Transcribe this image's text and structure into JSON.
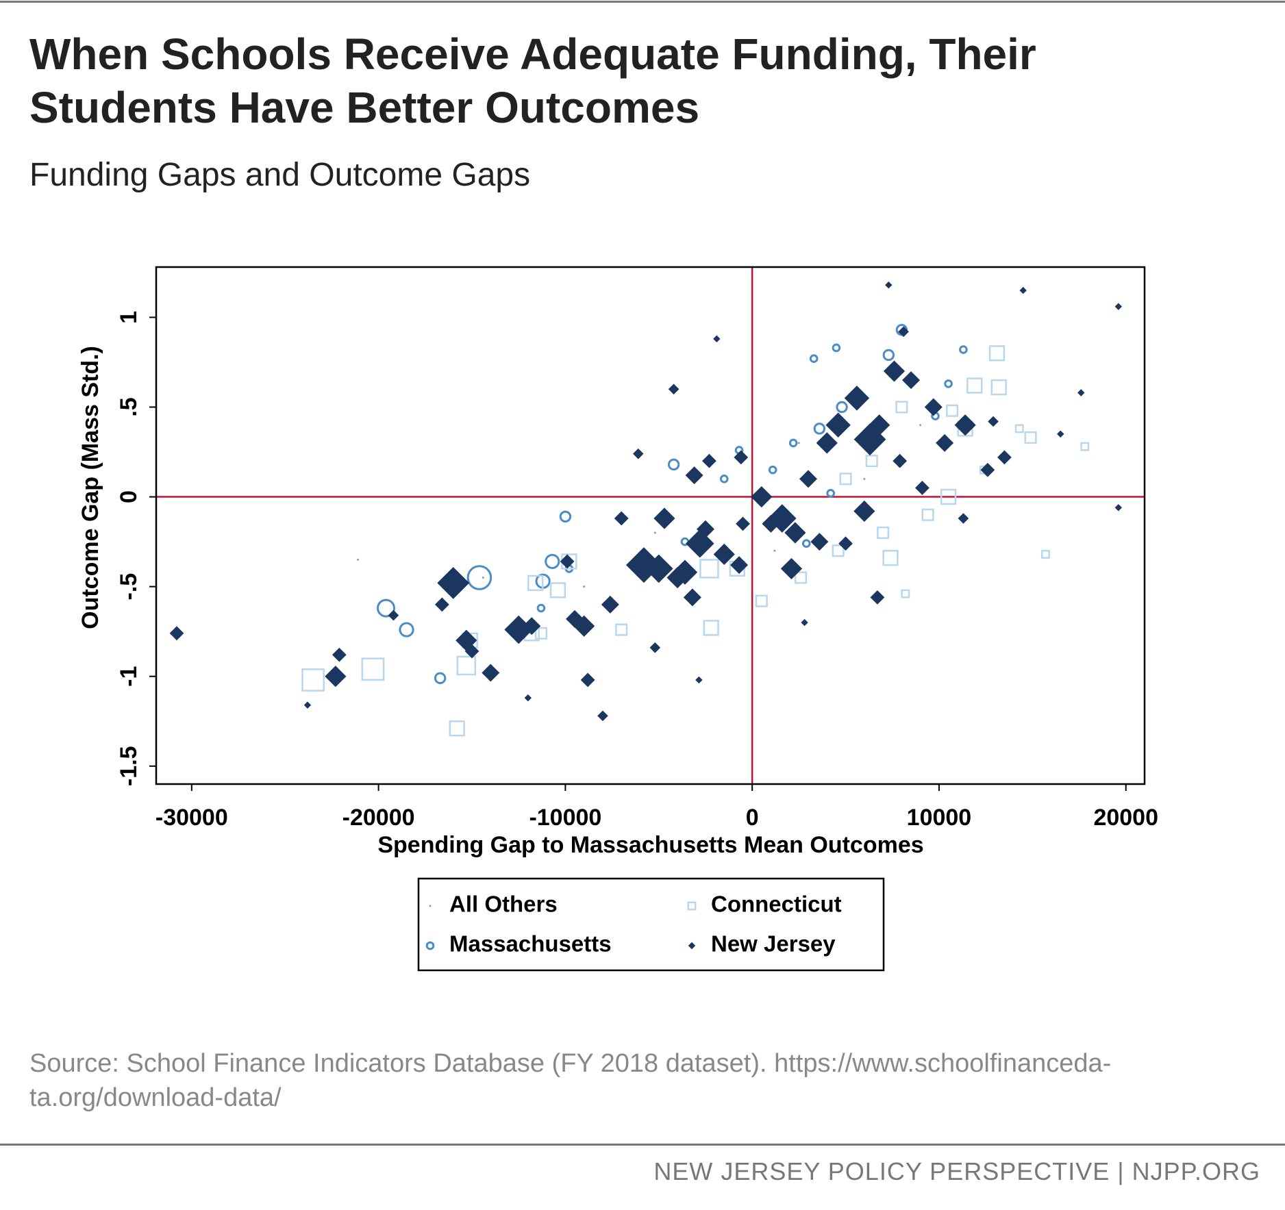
{
  "chart_data": {
    "type": "scatter",
    "title": "When Schools Receive Adequate Funding, Their Students Have Better Outcomes",
    "subtitle": "Funding Gaps and Outcome Gaps",
    "xlabel": "Spending Gap to Massachusetts Mean Outcomes",
    "ylabel": "Outcome Gap (Mass Std.)",
    "source": "Source: School Finance Indicators Database (FY 2018 dataset). https://www.schoolfinanceda-ta.org/download-data/",
    "footer": "NEW JERSEY POLICY PERSPECTIVE | NJPP.ORG",
    "xlim": [
      -31900,
      21000
    ],
    "ylim": [
      -1.6,
      1.28
    ],
    "xticks": [
      -30000,
      -20000,
      -10000,
      0,
      10000,
      20000
    ],
    "yticks": [
      {
        "value": -1.5,
        "label": "-1.5"
      },
      -1,
      {
        "value": -0.5,
        "label": "-.5"
      },
      0,
      {
        "value": 0.5,
        "label": ".5"
      },
      1
    ],
    "reference_lines": {
      "x": [
        0
      ],
      "y": [
        0
      ],
      "color": "#c8102e"
    },
    "series": [
      {
        "name": "All Others",
        "color": "#9a9a9a",
        "marker": "dot",
        "x": [
          -21100,
          -14400,
          2500,
          6000,
          -5200,
          1200,
          9000,
          -9000
        ],
        "values": [
          -0.35,
          -0.45,
          0.3,
          0.1,
          -0.2,
          -0.3,
          0.4,
          -0.5
        ],
        "sizes": [
          1,
          1,
          1,
          1,
          1,
          1,
          1,
          1
        ]
      },
      {
        "name": "Massachusetts",
        "color": "#4a8bc8",
        "marker": "circle",
        "x": [
          -14600,
          -19600,
          -18500,
          -16700,
          -11200,
          -10700,
          -10000,
          -11300,
          -4200,
          -700,
          3300,
          4500,
          8000,
          7300,
          4800,
          2200,
          1100,
          6000,
          9800,
          10500,
          11300,
          3600,
          4200,
          2900,
          -1500,
          -3600,
          -9800
        ],
        "values": [
          -0.45,
          -0.62,
          -0.74,
          -1.01,
          -0.47,
          -0.36,
          -0.11,
          -0.62,
          0.18,
          0.26,
          0.77,
          0.83,
          0.93,
          0.79,
          0.5,
          0.3,
          0.15,
          0.3,
          0.45,
          0.63,
          0.82,
          0.38,
          0.02,
          -0.26,
          0.1,
          -0.25,
          -0.4
        ],
        "sizes": [
          7,
          5,
          4,
          3,
          4,
          4,
          3,
          2,
          3,
          2,
          2,
          2,
          3,
          3,
          3,
          2,
          2,
          2,
          2,
          2,
          2,
          3,
          2,
          2,
          2,
          2,
          2
        ]
      },
      {
        "name": "Connecticut",
        "color": "#b7d7ef",
        "marker": "square",
        "x": [
          -23500,
          -20300,
          -15800,
          -15300,
          -15100,
          -11800,
          -11300,
          -11600,
          -10400,
          -9800,
          -7000,
          -2200,
          -2300,
          -800,
          500,
          2600,
          4600,
          7400,
          7000,
          9400,
          10500,
          11400,
          11900,
          13100,
          13200,
          14900,
          10700,
          8000,
          6400,
          5000,
          15700,
          17800,
          14300,
          12400,
          8200
        ],
        "values": [
          -1.02,
          -0.96,
          -1.29,
          -0.94,
          -0.8,
          -0.76,
          -0.76,
          -0.48,
          -0.52,
          -0.36,
          -0.74,
          -0.73,
          -0.4,
          -0.4,
          -0.58,
          -0.45,
          -0.3,
          -0.34,
          -0.2,
          -0.1,
          0,
          0.38,
          0.62,
          0.8,
          0.61,
          0.33,
          0.48,
          0.5,
          0.2,
          0.1,
          -0.32,
          0.28,
          0.38,
          0.15,
          -0.54
        ],
        "sizes": [
          6,
          6,
          4,
          5,
          4,
          4,
          3,
          4,
          4,
          4,
          3,
          4,
          5,
          4,
          3,
          3,
          3,
          4,
          3,
          3,
          4,
          4,
          4,
          4,
          4,
          3,
          3,
          3,
          3,
          3,
          2,
          2,
          2,
          2,
          2
        ]
      },
      {
        "name": "New Jersey",
        "color": "#1b365f",
        "marker": "diamond",
        "x": [
          -30800,
          -23800,
          -22300,
          -22100,
          -19200,
          -16000,
          -16600,
          -15300,
          -15000,
          -14000,
          -12500,
          -11800,
          -9000,
          -9500,
          -8800,
          -8000,
          -7600,
          -5800,
          -5000,
          -4000,
          -3600,
          -3200,
          -2800,
          -2500,
          -1500,
          -700,
          -2850,
          -3100,
          -2300,
          -1900,
          -600,
          500,
          1600,
          2300,
          3000,
          4000,
          4600,
          5600,
          6300,
          6800,
          7600,
          8500,
          9700,
          10300,
          11400,
          12600,
          13500,
          14500,
          19600,
          19600,
          7300,
          8100,
          6700,
          5000,
          2800,
          -5200,
          -4200,
          -6100,
          -9900,
          -12000,
          2100,
          3600,
          1000,
          -500,
          9100,
          7900,
          6000,
          -4700,
          -7000,
          11300,
          17600,
          16500,
          12900
        ],
        "values": [
          -0.76,
          -1.16,
          -1.0,
          -0.88,
          -0.66,
          -0.48,
          -0.6,
          -0.8,
          -0.86,
          -0.98,
          -0.74,
          -0.72,
          -0.72,
          -0.68,
          -1.02,
          -1.22,
          -0.6,
          -0.38,
          -0.4,
          -0.45,
          -0.42,
          -0.56,
          -0.26,
          -0.18,
          -0.32,
          -0.38,
          -1.02,
          0.12,
          0.2,
          0.88,
          0.22,
          0.0,
          -0.12,
          -0.2,
          0.1,
          0.3,
          0.4,
          0.55,
          0.32,
          0.4,
          0.7,
          0.65,
          0.5,
          0.3,
          0.4,
          0.15,
          0.22,
          1.15,
          1.06,
          -0.06,
          1.18,
          0.92,
          -0.56,
          -0.26,
          -0.7,
          -0.84,
          0.6,
          0.24,
          -0.36,
          -1.12,
          -0.4,
          -0.25,
          -0.15,
          -0.15,
          0.05,
          0.2,
          -0.08,
          -0.12,
          -0.12,
          -0.12,
          0.58,
          0.35,
          0.42
        ],
        "sizes": [
          4,
          2,
          6,
          4,
          3,
          9,
          4,
          6,
          4,
          5,
          8,
          5,
          6,
          5,
          4,
          3,
          5,
          10,
          8,
          6,
          7,
          5,
          8,
          5,
          6,
          5,
          2,
          5,
          4,
          2,
          4,
          6,
          8,
          6,
          5,
          6,
          7,
          7,
          9,
          6,
          6,
          5,
          5,
          5,
          6,
          4,
          4,
          2,
          2,
          2,
          2,
          3,
          4,
          4,
          2,
          3,
          3,
          3,
          4,
          2,
          6,
          5,
          5,
          4,
          4,
          4,
          6,
          6,
          4,
          3,
          2,
          2,
          3
        ]
      }
    ]
  }
}
